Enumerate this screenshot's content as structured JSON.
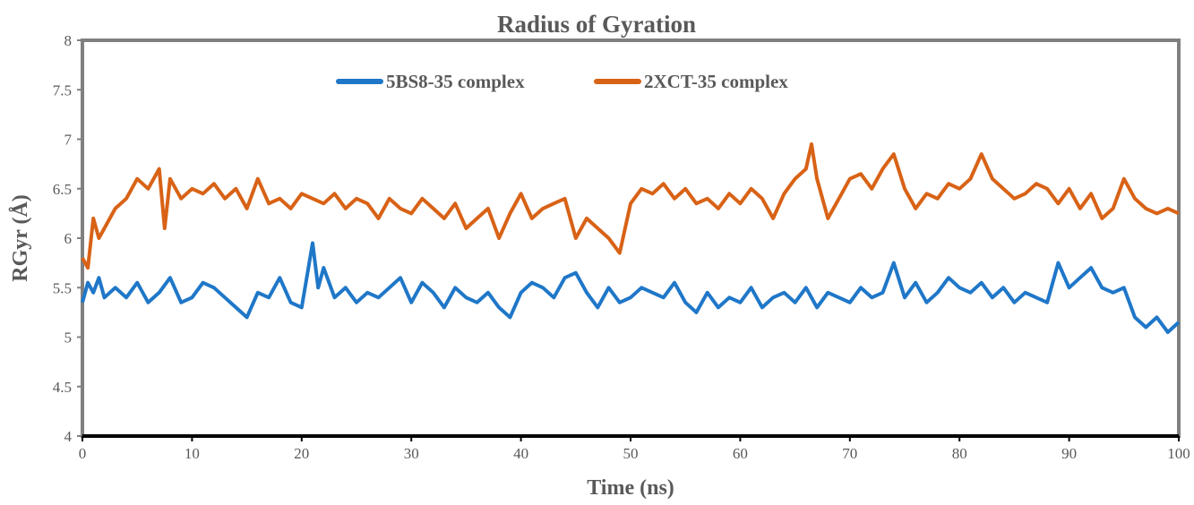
{
  "chart_data": {
    "type": "line",
    "title": "Radius of Gyration",
    "xlabel": "Time (ns)",
    "ylabel": "RGyr (Å)",
    "xlim": [
      0,
      100
    ],
    "ylim": [
      4,
      8
    ],
    "xticks": [
      0,
      10,
      20,
      30,
      40,
      50,
      60,
      70,
      80,
      90,
      100
    ],
    "yticks": [
      4,
      4.5,
      5,
      5.5,
      6,
      6.5,
      7,
      7.5,
      8
    ],
    "grid": false,
    "legend_position": "top-center",
    "series": [
      {
        "name": "5BS8-35 complex",
        "color": "#1f77c8",
        "x": [
          0,
          0.5,
          1,
          1.5,
          2,
          3,
          4,
          5,
          6,
          7,
          8,
          9,
          10,
          11,
          12,
          13,
          14,
          15,
          16,
          17,
          18,
          19,
          20,
          21,
          21.5,
          22,
          23,
          24,
          25,
          26,
          27,
          28,
          29,
          30,
          31,
          32,
          33,
          34,
          35,
          36,
          37,
          38,
          39,
          40,
          41,
          42,
          43,
          44,
          45,
          46,
          47,
          48,
          49,
          50,
          51,
          52,
          53,
          54,
          55,
          56,
          57,
          58,
          59,
          60,
          61,
          62,
          63,
          64,
          65,
          66,
          67,
          68,
          69,
          70,
          71,
          72,
          73,
          74,
          75,
          76,
          77,
          78,
          79,
          80,
          81,
          82,
          83,
          84,
          85,
          86,
          87,
          88,
          89,
          90,
          91,
          92,
          93,
          94,
          95,
          96,
          97,
          98,
          99,
          100
        ],
        "values": [
          5.35,
          5.55,
          5.45,
          5.6,
          5.4,
          5.5,
          5.4,
          5.55,
          5.35,
          5.45,
          5.6,
          5.35,
          5.4,
          5.55,
          5.5,
          5.4,
          5.3,
          5.2,
          5.45,
          5.4,
          5.6,
          5.35,
          5.3,
          5.95,
          5.5,
          5.7,
          5.4,
          5.5,
          5.35,
          5.45,
          5.4,
          5.5,
          5.6,
          5.35,
          5.55,
          5.45,
          5.3,
          5.5,
          5.4,
          5.35,
          5.45,
          5.3,
          5.2,
          5.45,
          5.55,
          5.5,
          5.4,
          5.6,
          5.65,
          5.45,
          5.3,
          5.5,
          5.35,
          5.4,
          5.5,
          5.45,
          5.4,
          5.55,
          5.35,
          5.25,
          5.45,
          5.3,
          5.4,
          5.35,
          5.5,
          5.3,
          5.4,
          5.45,
          5.35,
          5.5,
          5.3,
          5.45,
          5.4,
          5.35,
          5.5,
          5.4,
          5.45,
          5.75,
          5.4,
          5.55,
          5.35,
          5.45,
          5.6,
          5.5,
          5.45,
          5.55,
          5.4,
          5.5,
          5.35,
          5.45,
          5.4,
          5.35,
          5.75,
          5.5,
          5.6,
          5.7,
          5.5,
          5.45,
          5.5,
          5.2,
          5.1,
          5.2,
          5.05,
          5.15
        ]
      },
      {
        "name": "2XCT-35 complex",
        "color": "#d86216",
        "x": [
          0,
          0.5,
          1,
          1.5,
          2,
          3,
          4,
          5,
          6,
          7,
          7.5,
          8,
          9,
          10,
          11,
          12,
          13,
          14,
          15,
          16,
          17,
          18,
          19,
          20,
          21,
          22,
          23,
          24,
          25,
          26,
          27,
          28,
          29,
          30,
          31,
          32,
          33,
          34,
          35,
          36,
          37,
          38,
          39,
          40,
          41,
          42,
          43,
          44,
          45,
          46,
          47,
          48,
          49,
          50,
          51,
          52,
          53,
          54,
          55,
          56,
          57,
          58,
          59,
          60,
          61,
          62,
          63,
          64,
          65,
          66,
          66.5,
          67,
          68,
          69,
          70,
          71,
          72,
          73,
          74,
          75,
          76,
          77,
          78,
          79,
          80,
          81,
          82,
          83,
          84,
          85,
          86,
          87,
          88,
          89,
          90,
          91,
          92,
          93,
          94,
          95,
          96,
          97,
          98,
          99,
          100
        ],
        "values": [
          5.8,
          5.7,
          6.2,
          6.0,
          6.1,
          6.3,
          6.4,
          6.6,
          6.5,
          6.7,
          6.1,
          6.6,
          6.4,
          6.5,
          6.45,
          6.55,
          6.4,
          6.5,
          6.3,
          6.6,
          6.35,
          6.4,
          6.3,
          6.45,
          6.4,
          6.35,
          6.45,
          6.3,
          6.4,
          6.35,
          6.2,
          6.4,
          6.3,
          6.25,
          6.4,
          6.3,
          6.2,
          6.35,
          6.1,
          6.2,
          6.3,
          6.0,
          6.25,
          6.45,
          6.2,
          6.3,
          6.35,
          6.4,
          6.0,
          6.2,
          6.1,
          6.0,
          5.85,
          6.35,
          6.5,
          6.45,
          6.55,
          6.4,
          6.5,
          6.35,
          6.4,
          6.3,
          6.45,
          6.35,
          6.5,
          6.4,
          6.2,
          6.45,
          6.6,
          6.7,
          6.95,
          6.6,
          6.2,
          6.4,
          6.6,
          6.65,
          6.5,
          6.7,
          6.85,
          6.5,
          6.3,
          6.45,
          6.4,
          6.55,
          6.5,
          6.6,
          6.85,
          6.6,
          6.5,
          6.4,
          6.45,
          6.55,
          6.5,
          6.35,
          6.5,
          6.3,
          6.45,
          6.2,
          6.3,
          6.6,
          6.4,
          6.3,
          6.25,
          6.3,
          6.25
        ]
      }
    ]
  }
}
